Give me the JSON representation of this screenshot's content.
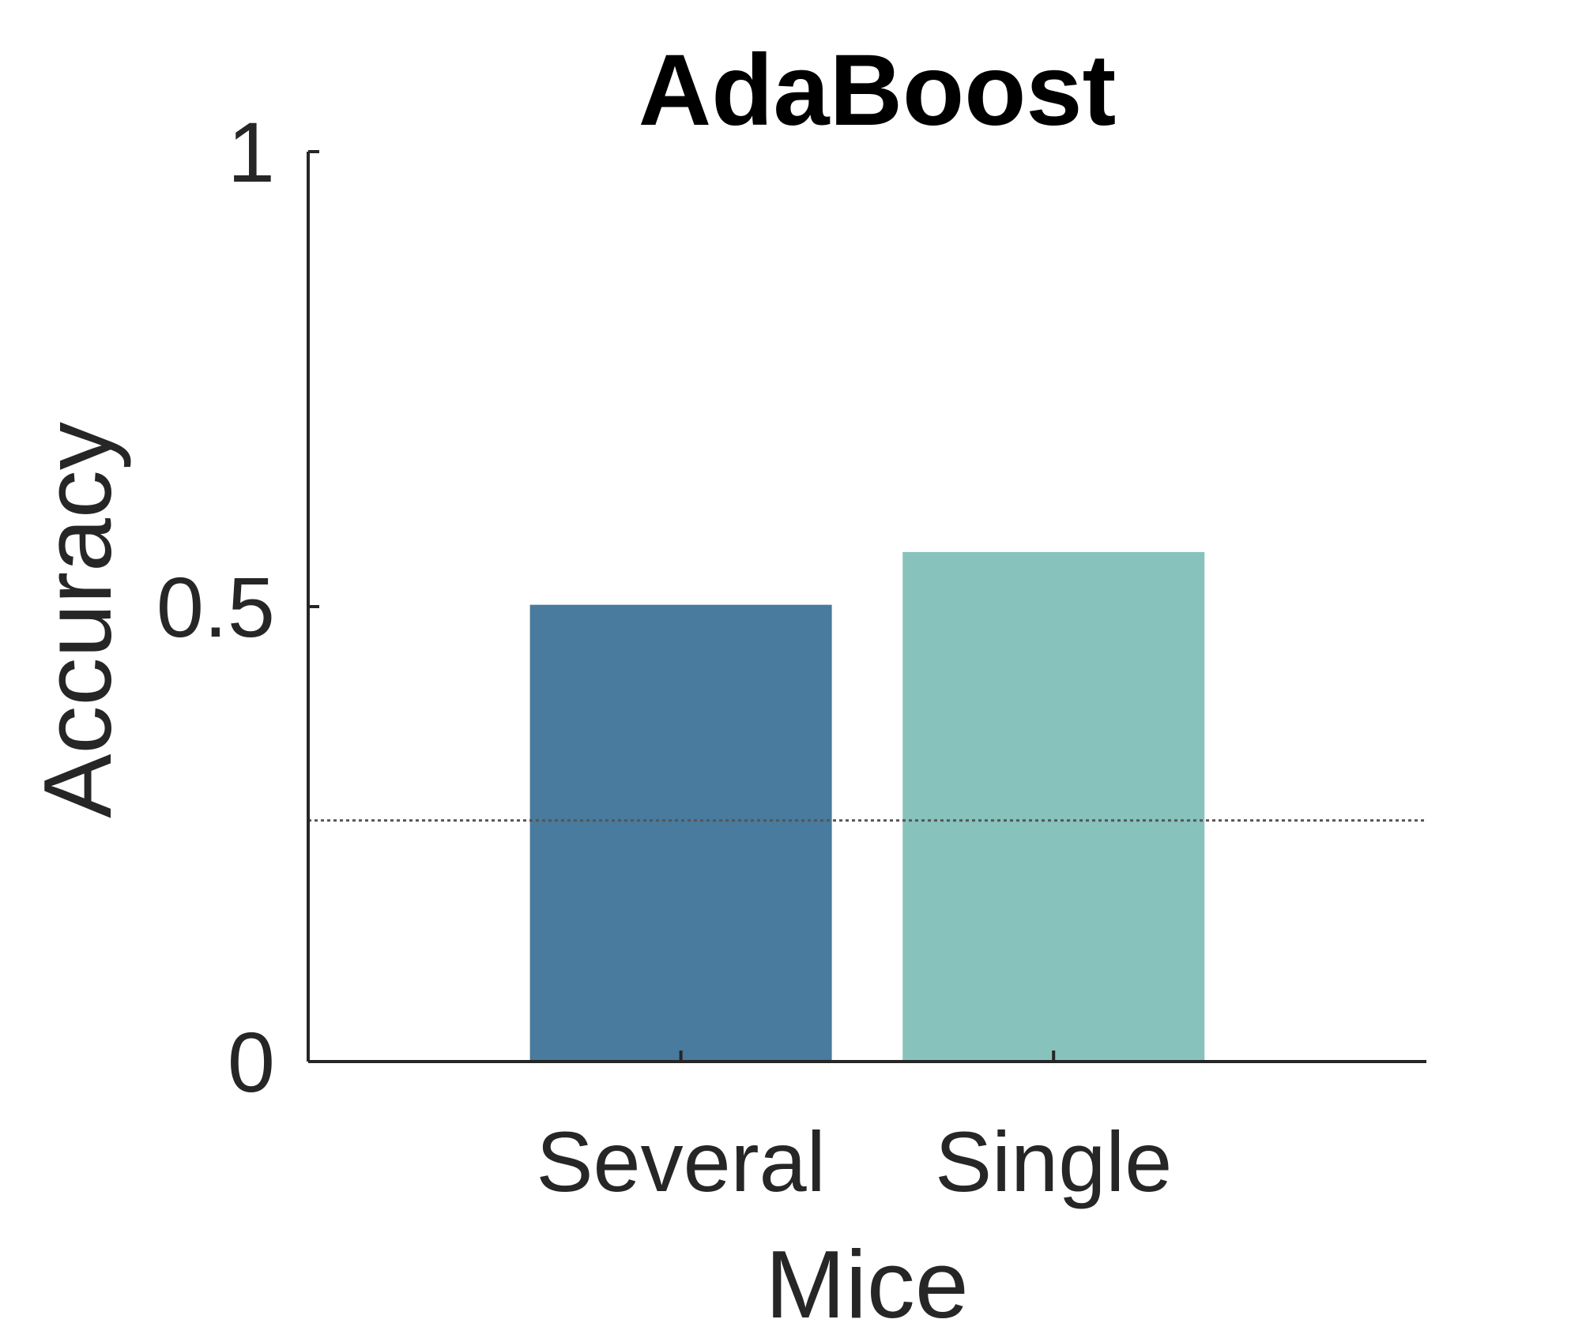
{
  "chart_data": {
    "type": "bar",
    "title": "AdaBoost",
    "xlabel": "Mice",
    "ylabel": "Accuracy",
    "categories": [
      "Several",
      "Single"
    ],
    "values": [
      0.502,
      0.56
    ],
    "colors": [
      "#487b9d",
      "#87c3bc"
    ],
    "ylim": [
      0,
      1
    ],
    "yticks": [
      0,
      0.5,
      1
    ],
    "ytick_labels": [
      "0",
      "0.5",
      "1"
    ],
    "reference_line": {
      "y": 0.265,
      "style": "dotted",
      "color": "#555555"
    },
    "grid": false,
    "legend": "none"
  }
}
